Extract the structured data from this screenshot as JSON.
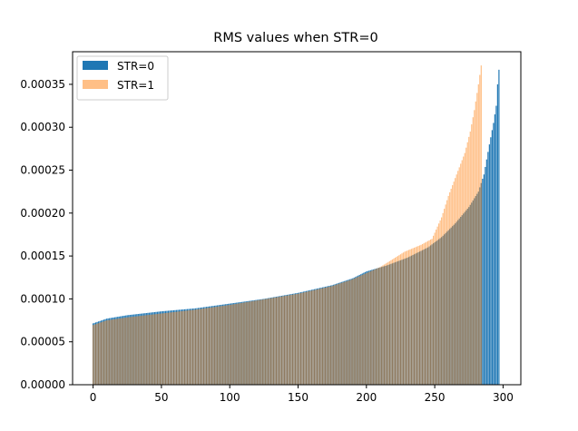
{
  "chart_data": {
    "type": "bar",
    "title": "RMS values when STR=0",
    "xlabel": "",
    "ylabel": "",
    "xlim": [
      -15,
      313
    ],
    "ylim": [
      0,
      0.000388
    ],
    "x_ticks": [
      0,
      50,
      100,
      150,
      200,
      250,
      300
    ],
    "x_tick_labels": [
      "0",
      "50",
      "100",
      "150",
      "200",
      "250",
      "300"
    ],
    "y_ticks": [
      0,
      5e-05,
      0.0001,
      0.00015,
      0.0002,
      0.00025,
      0.0003,
      0.00035
    ],
    "y_tick_labels": [
      "0.00000",
      "0.00005",
      "0.00010",
      "0.00015",
      "0.00020",
      "0.00025",
      "0.00030",
      "0.00035"
    ],
    "legend_position": "upper-left",
    "grid": false,
    "series": [
      {
        "name": "STR=0",
        "color": "#1f77b4",
        "opacity": 1,
        "count": 298,
        "sorted_profile": [
          [
            0,
            7.15e-05
          ],
          [
            10,
            7.7e-05
          ],
          [
            25,
            8.1e-05
          ],
          [
            50,
            8.55e-05
          ],
          [
            75,
            8.9e-05
          ],
          [
            100,
            9.45e-05
          ],
          [
            125,
            0.0001
          ],
          [
            150,
            0.000107
          ],
          [
            175,
            0.000116
          ],
          [
            190,
            0.000124
          ],
          [
            200,
            0.000132
          ],
          [
            215,
            0.000139
          ],
          [
            230,
            0.000148
          ],
          [
            245,
            0.00016
          ],
          [
            255,
            0.000172
          ],
          [
            265,
            0.000188
          ],
          [
            275,
            0.000207
          ],
          [
            282,
            0.000225
          ],
          [
            286,
            0.000245
          ],
          [
            290,
            0.00028
          ],
          [
            293,
            0.000305
          ],
          [
            295,
            0.000325
          ],
          [
            296,
            0.00035
          ],
          [
            297,
            0.000367
          ]
        ]
      },
      {
        "name": "STR=1",
        "color": "#ff7f0e",
        "opacity": 0.5,
        "count": 285,
        "sorted_profile": [
          [
            0,
            6.95e-05
          ],
          [
            10,
            7.5e-05
          ],
          [
            25,
            7.85e-05
          ],
          [
            50,
            8.3e-05
          ],
          [
            75,
            8.75e-05
          ],
          [
            100,
            9.3e-05
          ],
          [
            125,
            9.95e-05
          ],
          [
            150,
            0.000106
          ],
          [
            175,
            0.000115
          ],
          [
            190,
            0.000123
          ],
          [
            200,
            0.00013
          ],
          [
            210,
            0.000137
          ],
          [
            218,
            0.000145
          ],
          [
            228,
            0.000155
          ],
          [
            240,
            0.000163
          ],
          [
            248,
            0.00017
          ],
          [
            255,
            0.000195
          ],
          [
            260,
            0.00022
          ],
          [
            266,
            0.000245
          ],
          [
            272,
            0.00027
          ],
          [
            276,
            0.000295
          ],
          [
            279,
            0.00032
          ],
          [
            282,
            0.00035
          ],
          [
            284,
            0.000372
          ]
        ]
      }
    ]
  }
}
